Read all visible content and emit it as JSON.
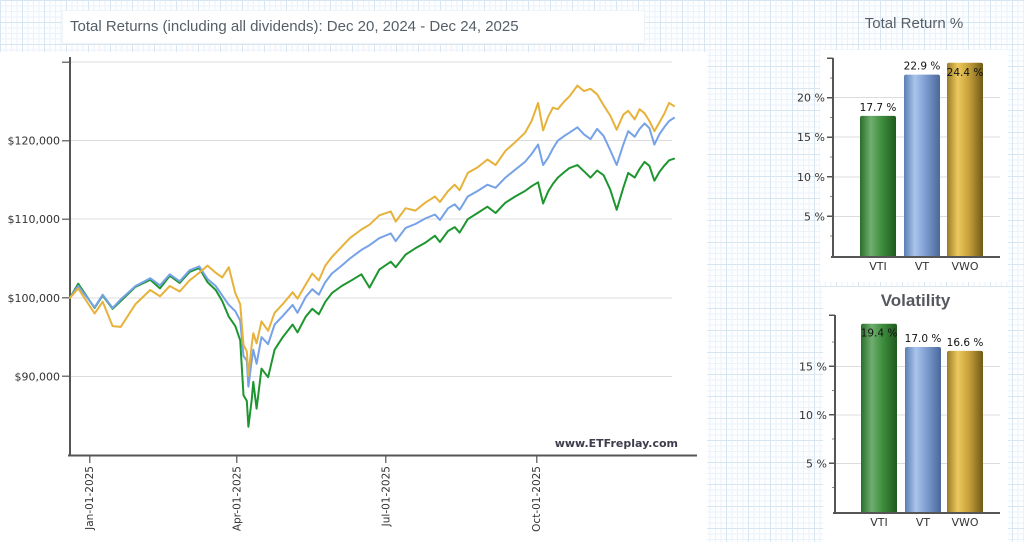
{
  "page": {
    "main_title": "Total Returns (including all dividends): Dec 20, 2024 - Dec 24, 2025",
    "total_return_title": "Total Return %",
    "volatility_title": "Volatility",
    "watermark": "www.ETFreplay.com"
  },
  "colors": {
    "vti_green": "#1e9630",
    "vt_blue": "#76a2e8",
    "vwo_gold": "#e7b23a",
    "axis": "#555555",
    "gridline": "#dcdcdc",
    "tick_text": "#333333",
    "title_text": "#555e66"
  },
  "chart_data": [
    {
      "type": "line",
      "title": "Total Returns (including all dividends): Dec 20, 2024 - Dec 24, 2025",
      "watermark": "www.ETFreplay.com",
      "x_axis": {
        "unit": "days since Dec 20, 2024",
        "range": [
          0,
          369
        ],
        "ticks": [
          {
            "day": 12,
            "label": "Jan-01-2025"
          },
          {
            "day": 102,
            "label": "Apr-01-2025"
          },
          {
            "day": 193,
            "label": "Jul-01-2025"
          },
          {
            "day": 285,
            "label": "Oct-01-2025"
          }
        ]
      },
      "y_axis": {
        "unit": "USD (growth of $100,000)",
        "ylim_k": [
          80,
          130.9
        ],
        "gridlines_k": [
          90,
          100,
          110,
          120,
          130
        ],
        "labeled_ticks_k": [
          90,
          100,
          110,
          120
        ],
        "grid": true
      },
      "x_days": [
        0,
        5,
        15,
        20,
        26,
        31,
        40,
        49,
        55,
        61,
        67,
        73,
        79,
        84,
        89,
        93,
        97,
        101,
        104,
        106,
        108,
        109,
        111,
        112,
        114,
        117,
        121,
        125,
        130,
        136,
        139,
        144,
        148,
        152,
        156,
        160,
        166,
        171,
        178,
        183,
        189,
        196,
        199,
        205,
        211,
        217,
        223,
        226,
        231,
        235,
        238,
        243,
        249,
        255,
        260,
        266,
        272,
        278,
        282,
        286,
        289,
        292,
        295,
        298,
        302,
        305,
        310,
        314,
        318,
        322,
        326,
        330,
        334,
        338,
        341,
        345,
        348,
        351,
        354,
        357,
        360,
        363,
        366,
        369
      ],
      "series": [
        {
          "name": "VTI",
          "color": "#1e9630",
          "values_k": [
            100,
            101.8,
            98.7,
            100.3,
            98.6,
            99.6,
            101.4,
            102.3,
            101.2,
            102.8,
            101.9,
            103.3,
            103.8,
            102.0,
            101.0,
            99.6,
            97.6,
            96.4,
            94.6,
            87.6,
            86.9,
            83.6,
            87.0,
            89.3,
            85.9,
            91.0,
            89.9,
            93.4,
            95.0,
            96.6,
            95.6,
            97.6,
            98.6,
            97.9,
            99.5,
            100.6,
            101.5,
            102.1,
            103.0,
            101.3,
            103.6,
            104.6,
            103.9,
            105.5,
            106.3,
            107.0,
            107.9,
            107.1,
            108.5,
            109.0,
            108.3,
            110.0,
            110.8,
            111.6,
            110.8,
            112.1,
            112.9,
            113.6,
            114.2,
            114.7,
            112.0,
            113.5,
            114.5,
            115.3,
            116.0,
            116.5,
            116.9,
            116.1,
            115.3,
            116.2,
            115.6,
            113.8,
            111.2,
            114.0,
            115.9,
            115.3,
            116.4,
            117.3,
            116.8,
            114.9,
            116.0,
            116.8,
            117.5,
            117.7
          ]
        },
        {
          "name": "VT",
          "color": "#76a2e8",
          "values_k": [
            100,
            101.5,
            98.8,
            100.4,
            98.7,
            99.8,
            101.5,
            102.5,
            101.6,
            103.0,
            102.1,
            103.5,
            104.0,
            102.4,
            101.5,
            100.3,
            99.1,
            98.3,
            97.1,
            92.6,
            92.0,
            88.7,
            92.0,
            93.4,
            91.6,
            95.0,
            94.1,
            96.6,
            97.7,
            99.1,
            98.1,
            100.1,
            101.1,
            100.4,
            102.0,
            103.1,
            104.1,
            105.0,
            106.1,
            106.7,
            107.6,
            108.2,
            107.2,
            108.9,
            109.4,
            110.1,
            110.6,
            109.9,
            111.4,
            111.9,
            111.2,
            112.9,
            113.6,
            114.4,
            114.0,
            115.3,
            116.3,
            117.3,
            118.3,
            119.5,
            116.9,
            117.8,
            119.0,
            120.0,
            120.6,
            121.0,
            121.7,
            120.8,
            120.2,
            121.5,
            120.6,
            118.8,
            116.9,
            119.5,
            121.2,
            120.5,
            121.5,
            122.2,
            121.6,
            119.5,
            120.8,
            121.7,
            122.5,
            122.9
          ]
        },
        {
          "name": "VWO",
          "color": "#e7b23a",
          "values_k": [
            100,
            101.2,
            98.0,
            99.5,
            96.4,
            96.3,
            99.2,
            101.0,
            100.2,
            101.5,
            100.8,
            102.2,
            103.2,
            104.1,
            103.2,
            102.6,
            103.9,
            100.6,
            99.2,
            94.0,
            93.2,
            90.1,
            94.0,
            95.5,
            94.2,
            97.0,
            95.8,
            98.1,
            99.2,
            100.7,
            99.9,
            101.7,
            103.1,
            102.2,
            104.1,
            105.2,
            106.5,
            107.6,
            108.7,
            109.3,
            110.5,
            111.0,
            109.7,
            111.4,
            111.1,
            112.1,
            112.9,
            112.2,
            113.6,
            114.4,
            113.7,
            115.9,
            116.6,
            117.6,
            116.9,
            118.7,
            119.8,
            121.0,
            122.5,
            124.8,
            121.3,
            123.0,
            124.2,
            124.0,
            125.0,
            125.6,
            127.0,
            126.3,
            126.6,
            125.9,
            124.5,
            123.2,
            121.4,
            123.3,
            123.8,
            122.7,
            124.0,
            123.5,
            122.5,
            121.2,
            122.3,
            123.4,
            124.8,
            124.4
          ]
        }
      ]
    },
    {
      "type": "bar",
      "title": "Total Return %",
      "categories": [
        "VTI",
        "VT",
        "VWO"
      ],
      "values": [
        17.7,
        22.9,
        24.4
      ],
      "value_labels": [
        "17.7 %",
        "22.9 %",
        "24.4 %"
      ],
      "bar_colors": [
        "green",
        "blue",
        "gold"
      ],
      "y_ticks": [
        5,
        10,
        15,
        20
      ],
      "minor_ticks": [
        2.5,
        7.5,
        12.5,
        17.5,
        22.5
      ],
      "ylim": [
        0,
        25
      ],
      "grid": true,
      "legend": "none"
    },
    {
      "type": "bar",
      "title": "Volatility",
      "categories": [
        "VTI",
        "VT",
        "VWO"
      ],
      "values": [
        19.4,
        17.0,
        16.6
      ],
      "value_labels": [
        "19.4 %",
        "17.0 %",
        "16.6 %"
      ],
      "bar_colors": [
        "green",
        "blue",
        "gold"
      ],
      "y_ticks": [
        5,
        10,
        15
      ],
      "minor_ticks": [
        2.5,
        7.5,
        12.5,
        17.5
      ],
      "ylim": [
        0,
        20.3
      ],
      "grid": true,
      "legend": "none"
    }
  ]
}
